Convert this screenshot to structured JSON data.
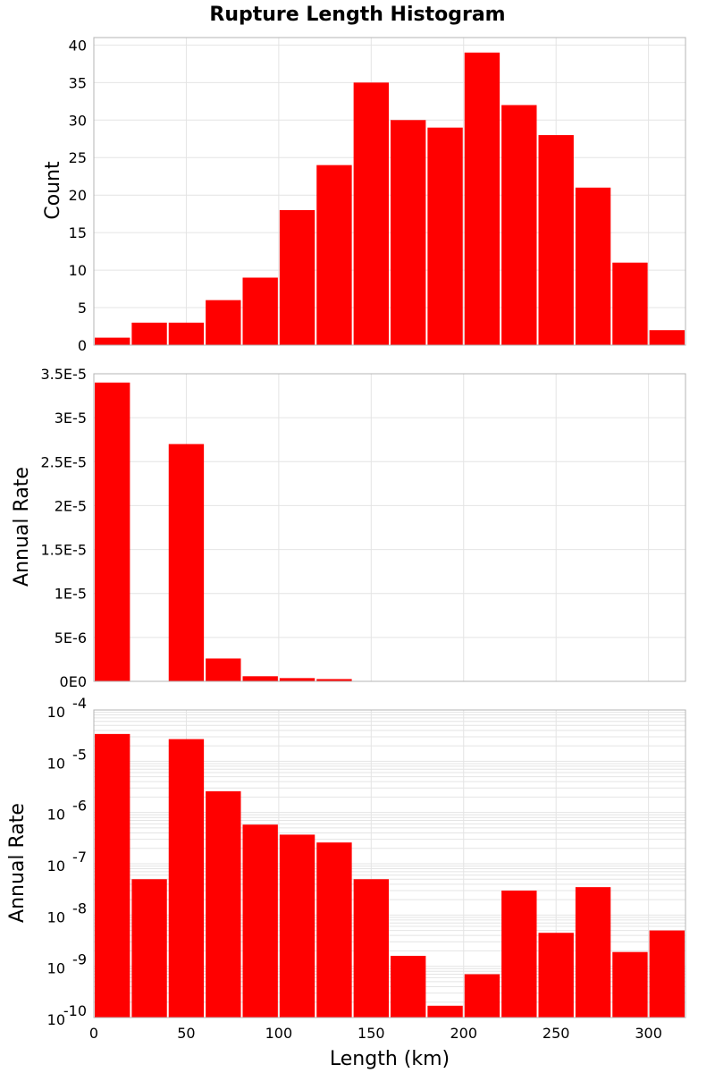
{
  "title": "Rupture Length Histogram",
  "colors": {
    "bar": "#ff0000",
    "grid": "#e4e4e4",
    "frame": "#b4b4b4"
  },
  "chart_data": [
    {
      "type": "bar",
      "bin_centers": [
        10,
        30,
        50,
        70,
        90,
        110,
        130,
        150,
        170,
        190,
        210,
        230,
        250,
        270,
        290,
        310
      ],
      "values": [
        1,
        3,
        3,
        6,
        9,
        18,
        24,
        35,
        30,
        29,
        39,
        32,
        28,
        21,
        11,
        2
      ],
      "ylabel": "Count",
      "ylim": [
        0,
        41
      ],
      "yticks": [
        0,
        5,
        10,
        15,
        20,
        25,
        30,
        35,
        40
      ],
      "yticklabels": [
        "0",
        "5",
        "10",
        "15",
        "20",
        "25",
        "30",
        "35",
        "40"
      ],
      "yscale": "linear",
      "xlim": [
        0,
        320
      ],
      "grid": true
    },
    {
      "type": "bar",
      "bin_centers": [
        10,
        30,
        50,
        70,
        90,
        110,
        130,
        150,
        170,
        190,
        210,
        230,
        250,
        270,
        290,
        310
      ],
      "values": [
        3.4e-05,
        5e-08,
        2.7e-05,
        2.6e-06,
        5.8e-07,
        3.7e-07,
        2.6e-07,
        5e-08,
        1.6e-09,
        1.7e-10,
        7e-10,
        3e-08,
        4.5e-09,
        3.5e-08,
        1.9e-09,
        5e-09
      ],
      "ylabel": "Annual Rate",
      "ylim": [
        0,
        3.5e-05
      ],
      "yticks": [
        0,
        5e-06,
        1e-05,
        1.5e-05,
        2e-05,
        2.5e-05,
        3e-05,
        3.5e-05
      ],
      "yticklabels": [
        "0E0",
        "5E-6",
        "1E-5",
        "1.5E-5",
        "2E-5",
        "2.5E-5",
        "3E-5",
        "3.5E-5"
      ],
      "yscale": "linear",
      "xlim": [
        0,
        320
      ],
      "grid": true
    },
    {
      "type": "bar",
      "bin_centers": [
        10,
        30,
        50,
        70,
        90,
        110,
        130,
        150,
        170,
        190,
        210,
        230,
        250,
        270,
        290,
        310
      ],
      "values": [
        3.4e-05,
        5e-08,
        2.7e-05,
        2.6e-06,
        5.8e-07,
        3.7e-07,
        2.6e-07,
        5e-08,
        1.6e-09,
        1.7e-10,
        7e-10,
        3e-08,
        4.5e-09,
        3.5e-08,
        1.9e-09,
        5e-09
      ],
      "ylabel": "Annual Rate",
      "ylim_exp": [
        -10,
        -4
      ],
      "yticks_exp": [
        -10,
        -9,
        -8,
        -7,
        -6,
        -5,
        -4
      ],
      "ytick_base": "10",
      "ytick_exps": [
        "-10",
        "-9",
        "-8",
        "-7",
        "-6",
        "-5",
        "-4"
      ],
      "yscale": "log",
      "xlim": [
        0,
        320
      ],
      "xticks": [
        0,
        50,
        100,
        150,
        200,
        250,
        300
      ],
      "xticklabels": [
        "0",
        "50",
        "100",
        "150",
        "200",
        "250",
        "300"
      ],
      "xlabel": "Length (km)",
      "grid": true
    }
  ]
}
